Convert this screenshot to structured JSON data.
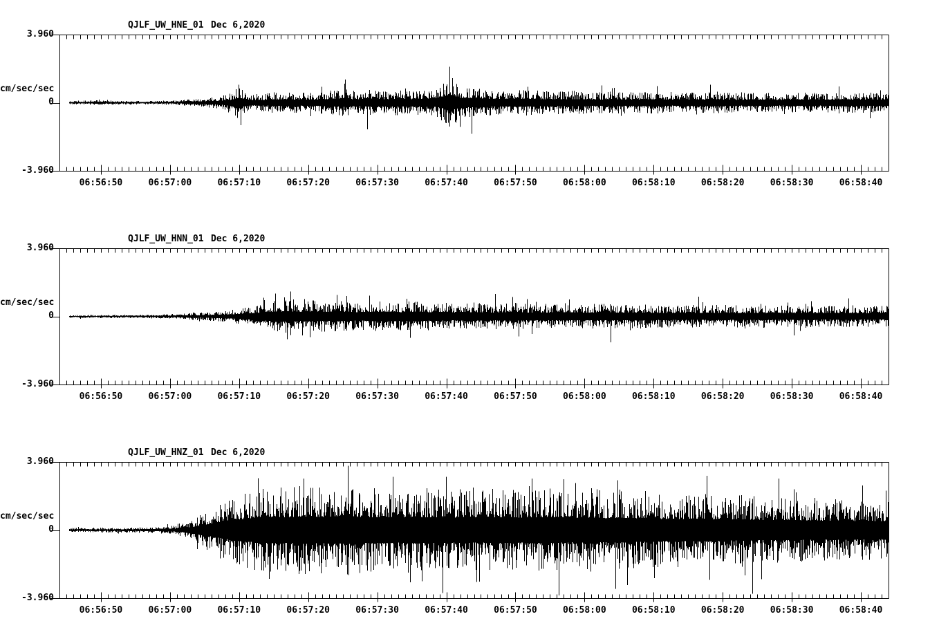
{
  "figure": {
    "background": "#ffffff",
    "trace_color": "#000000"
  },
  "y_axis": {
    "top_label": "3.960",
    "zero_label": "0",
    "bottom_label": "-3.960",
    "units_label": "cm/sec/sec"
  },
  "panels": [
    {
      "station": "QJLF_UW_HNE_01",
      "date": "Dec 6,2020"
    },
    {
      "station": "QJLF_UW_HNN_01",
      "date": "Dec 6,2020"
    },
    {
      "station": "QJLF_UW_HNZ_01",
      "date": "Dec 6,2020"
    }
  ],
  "chart_data": [
    {
      "type": "line",
      "title": "QJLF_UW_HNE_01  Dec 6,2020",
      "station": "QJLF_UW_HNE_01",
      "date": "Dec 6,2020",
      "ylabel": "cm/sec/sec",
      "ylim": [
        -3.96,
        3.96
      ],
      "yticks": [
        -3.96,
        0,
        3.96
      ],
      "ytick_labels": [
        "-3.960",
        "0",
        "3.960"
      ],
      "x_start": "06:56:44",
      "x_end": "06:58:44",
      "x_major_tick_s": 10,
      "x_minor_tick_s": 1,
      "xticklabels": [
        "06:56:50",
        "06:57:00",
        "06:57:10",
        "06:57:20",
        "06:57:30",
        "06:57:40",
        "06:57:50",
        "06:58:00",
        "06:58:10",
        "06:58:20",
        "06:58:30",
        "06:58:40"
      ],
      "seed": 11,
      "envelope": [
        [
          0,
          0.1
        ],
        [
          4,
          0.12
        ],
        [
          6,
          0.22
        ],
        [
          7,
          0.12
        ],
        [
          12,
          0.1
        ],
        [
          16,
          0.12
        ],
        [
          19,
          0.2
        ],
        [
          21,
          0.28
        ],
        [
          23,
          0.35
        ],
        [
          25,
          0.6
        ],
        [
          26,
          1.0
        ],
        [
          27,
          0.5
        ],
        [
          29,
          0.5
        ],
        [
          31,
          0.6
        ],
        [
          33,
          0.65
        ],
        [
          35,
          0.55
        ],
        [
          37,
          0.6
        ],
        [
          39,
          0.7
        ],
        [
          41,
          0.8
        ],
        [
          43,
          0.65
        ],
        [
          45,
          0.75
        ],
        [
          47,
          0.65
        ],
        [
          49,
          0.75
        ],
        [
          51,
          0.7
        ],
        [
          53,
          0.8
        ],
        [
          55,
          0.85
        ],
        [
          56.5,
          1.6
        ],
        [
          58,
          0.9
        ],
        [
          60,
          0.85
        ],
        [
          62,
          0.75
        ],
        [
          65,
          0.7
        ],
        [
          68,
          0.75
        ],
        [
          71,
          0.65
        ],
        [
          74,
          0.7
        ],
        [
          77,
          0.6
        ],
        [
          80,
          0.65
        ],
        [
          83,
          0.6
        ],
        [
          86,
          0.65
        ],
        [
          89,
          0.55
        ],
        [
          92,
          0.6
        ],
        [
          95,
          0.65
        ],
        [
          98,
          0.55
        ],
        [
          101,
          0.6
        ],
        [
          104,
          0.55
        ],
        [
          107,
          0.6
        ],
        [
          110,
          0.55
        ],
        [
          113,
          0.65
        ],
        [
          116,
          0.6
        ],
        [
          120,
          0.6
        ]
      ],
      "spikes": [
        [
          25.9,
          1.05
        ],
        [
          26.2,
          -1.3
        ],
        [
          41.3,
          1.35
        ],
        [
          44.5,
          -1.55
        ],
        [
          56.4,
          2.1
        ],
        [
          57.9,
          -1.4
        ],
        [
          59.6,
          -1.8
        ],
        [
          78.5,
          1.0
        ],
        [
          94.2,
          1.05
        ],
        [
          112.8,
          0.95
        ]
      ]
    },
    {
      "type": "line",
      "title": "QJLF_UW_HNN_01  Dec 6,2020",
      "station": "QJLF_UW_HNN_01",
      "date": "Dec 6,2020",
      "ylabel": "cm/sec/sec",
      "ylim": [
        -3.96,
        3.96
      ],
      "yticks": [
        -3.96,
        0,
        3.96
      ],
      "ytick_labels": [
        "-3.960",
        "0",
        "3.960"
      ],
      "x_start": "06:56:44",
      "x_end": "06:58:44",
      "x_major_tick_s": 10,
      "x_minor_tick_s": 1,
      "xticklabels": [
        "06:56:50",
        "06:57:00",
        "06:57:10",
        "06:57:20",
        "06:57:30",
        "06:57:40",
        "06:57:50",
        "06:58:00",
        "06:58:10",
        "06:58:20",
        "06:58:30",
        "06:58:40"
      ],
      "seed": 23,
      "envelope": [
        [
          0,
          0.08
        ],
        [
          5,
          0.1
        ],
        [
          10,
          0.1
        ],
        [
          14,
          0.12
        ],
        [
          17,
          0.15
        ],
        [
          20,
          0.22
        ],
        [
          23,
          0.3
        ],
        [
          26,
          0.45
        ],
        [
          29,
          0.7
        ],
        [
          31,
          0.9
        ],
        [
          33,
          1.0
        ],
        [
          35,
          0.85
        ],
        [
          37,
          0.95
        ],
        [
          39,
          0.85
        ],
        [
          41,
          0.9
        ],
        [
          43,
          0.8
        ],
        [
          45,
          0.85
        ],
        [
          47,
          0.9
        ],
        [
          49,
          0.8
        ],
        [
          51,
          0.9
        ],
        [
          53,
          0.8
        ],
        [
          55,
          0.85
        ],
        [
          57,
          0.75
        ],
        [
          60,
          0.8
        ],
        [
          63,
          0.75
        ],
        [
          66,
          0.8
        ],
        [
          69,
          0.7
        ],
        [
          72,
          0.75
        ],
        [
          75,
          0.7
        ],
        [
          78,
          0.75
        ],
        [
          81,
          0.7
        ],
        [
          84,
          0.72
        ],
        [
          87,
          0.65
        ],
        [
          90,
          0.7
        ],
        [
          93,
          0.65
        ],
        [
          96,
          0.7
        ],
        [
          99,
          0.62
        ],
        [
          102,
          0.68
        ],
        [
          105,
          0.62
        ],
        [
          108,
          0.66
        ],
        [
          111,
          0.6
        ],
        [
          114,
          0.65
        ],
        [
          117,
          0.6
        ],
        [
          120,
          0.62
        ]
      ],
      "spikes": [
        [
          33.4,
          1.45
        ],
        [
          36.2,
          -1.2
        ],
        [
          44.8,
          1.2
        ],
        [
          50.7,
          -1.25
        ],
        [
          63.1,
          1.3
        ],
        [
          79.8,
          -1.5
        ],
        [
          92.5,
          1.15
        ],
        [
          106.3,
          -1.1
        ]
      ]
    },
    {
      "type": "line",
      "title": "QJLF_UW_HNZ_01  Dec 6,2020",
      "station": "QJLF_UW_HNZ_01",
      "date": "Dec 6,2020",
      "ylabel": "cm/sec/sec",
      "ylim": [
        -3.96,
        3.96
      ],
      "yticks": [
        -3.96,
        0,
        3.96
      ],
      "ytick_labels": [
        "-3.960",
        "0",
        "3.960"
      ],
      "x_start": "06:56:44",
      "x_end": "06:58:44",
      "x_major_tick_s": 10,
      "x_minor_tick_s": 1,
      "xticklabels": [
        "06:56:50",
        "06:57:00",
        "06:57:10",
        "06:57:20",
        "06:57:30",
        "06:57:40",
        "06:57:50",
        "06:58:00",
        "06:58:10",
        "06:58:20",
        "06:58:30",
        "06:58:40"
      ],
      "seed": 47,
      "envelope": [
        [
          0,
          0.12
        ],
        [
          5,
          0.14
        ],
        [
          10,
          0.15
        ],
        [
          14,
          0.18
        ],
        [
          17,
          0.3
        ],
        [
          19,
          0.55
        ],
        [
          21,
          1.0
        ],
        [
          23,
          1.5
        ],
        [
          25,
          1.9
        ],
        [
          27,
          2.2
        ],
        [
          29,
          2.45
        ],
        [
          31,
          2.55
        ],
        [
          33,
          2.45
        ],
        [
          35,
          2.6
        ],
        [
          37,
          2.5
        ],
        [
          39,
          2.55
        ],
        [
          41,
          2.65
        ],
        [
          43,
          2.55
        ],
        [
          45,
          2.45
        ],
        [
          47,
          2.5
        ],
        [
          49,
          2.4
        ],
        [
          51,
          2.55
        ],
        [
          53,
          2.45
        ],
        [
          55,
          2.5
        ],
        [
          57,
          2.4
        ],
        [
          59,
          2.45
        ],
        [
          61,
          2.35
        ],
        [
          63,
          2.45
        ],
        [
          65,
          2.5
        ],
        [
          67,
          2.4
        ],
        [
          69,
          2.45
        ],
        [
          71,
          2.5
        ],
        [
          73,
          2.4
        ],
        [
          75,
          2.35
        ],
        [
          77,
          2.45
        ],
        [
          79,
          2.3
        ],
        [
          81,
          2.4
        ],
        [
          83,
          2.25
        ],
        [
          85,
          2.3
        ],
        [
          87,
          2.15
        ],
        [
          89,
          2.2
        ],
        [
          91,
          2.1
        ],
        [
          93,
          2.2
        ],
        [
          95,
          2.05
        ],
        [
          97,
          2.0
        ],
        [
          99,
          2.05
        ],
        [
          101,
          1.95
        ],
        [
          103,
          1.9
        ],
        [
          105,
          1.95
        ],
        [
          107,
          1.85
        ],
        [
          109,
          1.9
        ],
        [
          111,
          1.8
        ],
        [
          113,
          1.85
        ],
        [
          115,
          1.75
        ],
        [
          117,
          1.8
        ],
        [
          120,
          1.7
        ]
      ],
      "spikes": [
        [
          41.7,
          3.74
        ],
        [
          35.3,
          3.0
        ],
        [
          48.2,
          3.1
        ],
        [
          55.4,
          -3.66
        ],
        [
          55.9,
          3.1
        ],
        [
          60.8,
          -3.0
        ],
        [
          68.4,
          3.0
        ],
        [
          80.8,
          2.9
        ],
        [
          86.1,
          -2.8
        ],
        [
          93.7,
          3.16
        ],
        [
          100.3,
          -3.7
        ],
        [
          104.1,
          3.0
        ],
        [
          116.2,
          2.6
        ]
      ]
    }
  ]
}
